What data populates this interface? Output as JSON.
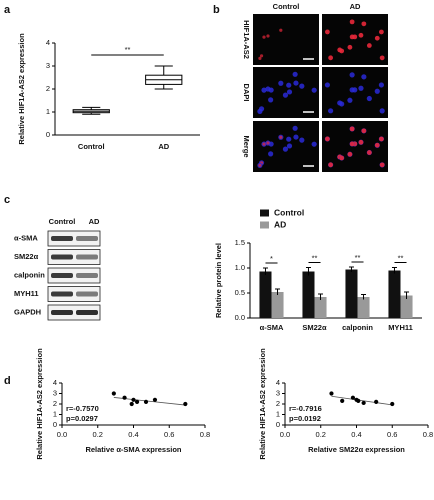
{
  "panels": [
    "a",
    "b",
    "c",
    "d"
  ],
  "microscopy": {
    "columns": [
      "Control",
      "AD"
    ],
    "rows": [
      "HIF1A-AS2",
      "DAPI",
      "Merge"
    ]
  },
  "blot": {
    "columns": [
      "Control",
      "AD"
    ],
    "rows": [
      "α-SMA",
      "SM22α",
      "calponin",
      "MYH11",
      "GAPDH"
    ]
  },
  "chart_data": [
    {
      "type": "box",
      "ylabel": "Relative HIF1A-AS2 expression",
      "categories": [
        "Control",
        "AD"
      ],
      "boxes": [
        {
          "min": 0.9,
          "q1": 0.97,
          "median": 1.03,
          "q3": 1.1,
          "max": 1.2
        },
        {
          "min": 2.0,
          "q1": 2.2,
          "median": 2.4,
          "q3": 2.6,
          "max": 3.0
        }
      ],
      "ylim": [
        0,
        4
      ],
      "yticks": [
        0,
        1,
        2,
        3,
        4
      ],
      "annotation": "**",
      "color": "#000000"
    },
    {
      "type": "bar",
      "ylabel": "Relative protein level",
      "categories": [
        "α-SMA",
        "SM22α",
        "calponin",
        "MYH11"
      ],
      "series": [
        {
          "name": "Control",
          "color": "#111111",
          "values": [
            0.93,
            0.93,
            0.97,
            0.95
          ],
          "errors": [
            0.07,
            0.08,
            0.05,
            0.06
          ]
        },
        {
          "name": "AD",
          "color": "#999999",
          "values": [
            0.52,
            0.42,
            0.42,
            0.45
          ],
          "errors": [
            0.06,
            0.06,
            0.05,
            0.07
          ]
        }
      ],
      "ylim": [
        0,
        1.5
      ],
      "yticks": [
        {
          "value": 0,
          "label": "0.0"
        },
        0.5,
        {
          "value": 1,
          "label": "1.0"
        },
        1.5
      ],
      "annotations": [
        "*",
        "**",
        "**",
        "**"
      ],
      "legend": "top"
    },
    {
      "type": "scatter",
      "xlabel": "Relative α-SMA expression",
      "ylabel": "Relative HIF1A-AS2 expression",
      "x": [
        0.29,
        0.35,
        0.39,
        0.4,
        0.42,
        0.47,
        0.52,
        0.69
      ],
      "values": [
        3.0,
        2.6,
        2.0,
        2.4,
        2.2,
        2.2,
        2.4,
        2.0
      ],
      "xlim": [
        0,
        0.8
      ],
      "xticks": [
        {
          "value": 0,
          "label": "0.0"
        },
        0.2,
        0.4,
        0.6,
        0.8
      ],
      "ylim": [
        0,
        4
      ],
      "yticks": [
        0,
        1,
        2,
        3,
        4
      ],
      "trendline": true,
      "color": "#000000",
      "annotations": [
        "r=-0.7570",
        "p=0.0297"
      ]
    },
    {
      "type": "scatter",
      "xlabel": "Relative SM22α expression",
      "ylabel": "Relative HIF1A-AS2 expression",
      "x": [
        0.26,
        0.32,
        0.38,
        0.4,
        0.41,
        0.44,
        0.51,
        0.6
      ],
      "values": [
        3.0,
        2.3,
        2.6,
        2.4,
        2.3,
        2.1,
        2.2,
        2.0
      ],
      "xlim": [
        0,
        0.8
      ],
      "xticks": [
        {
          "value": 0,
          "label": "0.0"
        },
        0.2,
        0.4,
        0.6,
        0.8
      ],
      "ylim": [
        0,
        4
      ],
      "yticks": [
        0,
        1,
        2,
        3,
        4
      ],
      "trendline": true,
      "color": "#000000",
      "annotations": [
        "r=-0.7916",
        "p=0.0192"
      ]
    }
  ]
}
